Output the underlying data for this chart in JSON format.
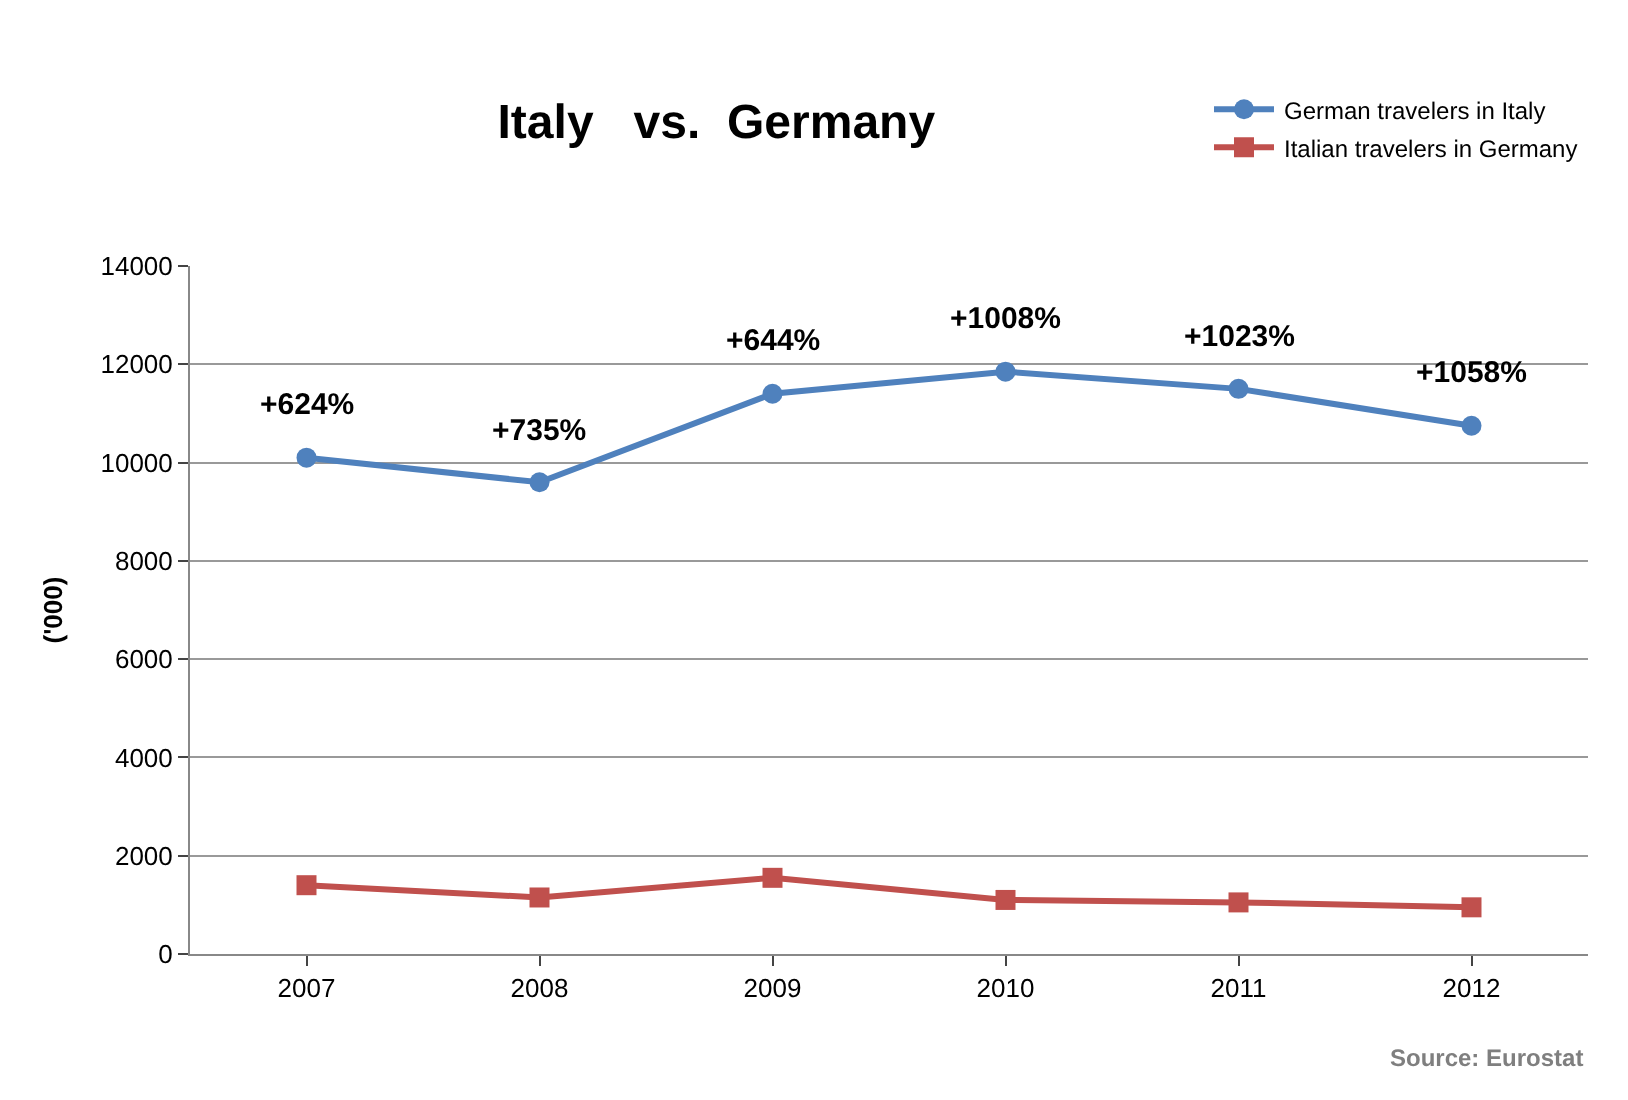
{
  "chart_data": {
    "type": "line",
    "title": "Italy   vs.  Germany",
    "ylabel": "('000)",
    "categories": [
      "2007",
      "2008",
      "2009",
      "2010",
      "2011",
      "2012"
    ],
    "series": [
      {
        "name": "German travelers in Italy",
        "color": "#4f81bd",
        "marker": "circle",
        "values": [
          10100,
          9600,
          11400,
          11850,
          11500,
          10750
        ]
      },
      {
        "name": "Italian travelers in Germany",
        "color": "#c0504d",
        "marker": "square",
        "values": [
          1400,
          1150,
          1550,
          1100,
          1050,
          950
        ]
      }
    ],
    "ylim": [
      0,
      14000
    ],
    "yticks": [
      0,
      2000,
      4000,
      6000,
      8000,
      10000,
      12000,
      14000
    ],
    "grid": "y",
    "legend": "top right",
    "line_style": "solid",
    "annotations": [
      {
        "text": "+624%",
        "x": "2007",
        "y": 10100
      },
      {
        "text": "+735%",
        "x": "2008",
        "y": 9600
      },
      {
        "text": "+644%",
        "x": "2009",
        "y": 11400
      },
      {
        "text": "+1008%",
        "x": "2010",
        "y": 11850
      },
      {
        "text": "+1023%",
        "x": "2011",
        "y": 11500
      },
      {
        "text": "+1058%",
        "x": "2012",
        "y": 10750
      },
      "Source: Eurostat"
    ]
  }
}
